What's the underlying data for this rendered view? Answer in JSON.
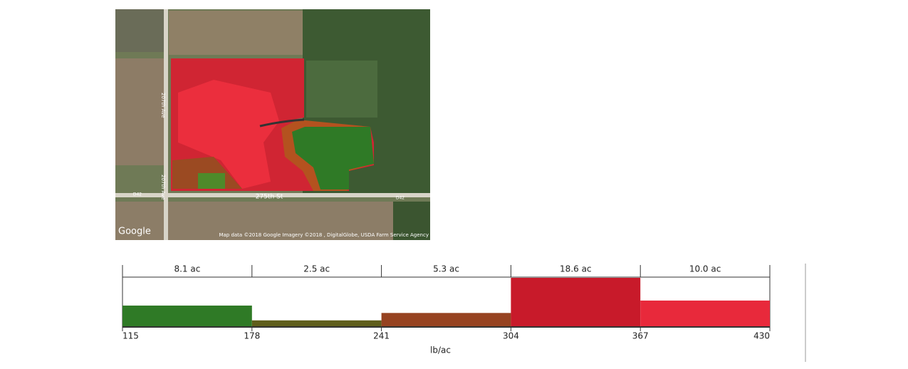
{
  "map": {
    "road_labels": [
      "207th Ave",
      "207th Ave",
      "275th St",
      "D42",
      "D42"
    ],
    "logo": "Google",
    "attribution": "Map data ©2018 Google  Imagery ©2018 , DigitalGlobe, USDA Farm Service Agency"
  },
  "chart_data": {
    "type": "histogram",
    "bins": [
      115,
      178,
      241,
      304,
      367,
      430
    ],
    "values": [
      8.1,
      2.5,
      5.3,
      18.6,
      10.0
    ],
    "value_labels": [
      "8.1 ac",
      "2.5 ac",
      "5.3 ac",
      "18.6 ac",
      "10.0 ac"
    ],
    "colors": [
      "#2f7a26",
      "#5f5e1c",
      "#964220",
      "#c81a2a",
      "#e8293b"
    ],
    "xlabel": "lb/ac"
  }
}
